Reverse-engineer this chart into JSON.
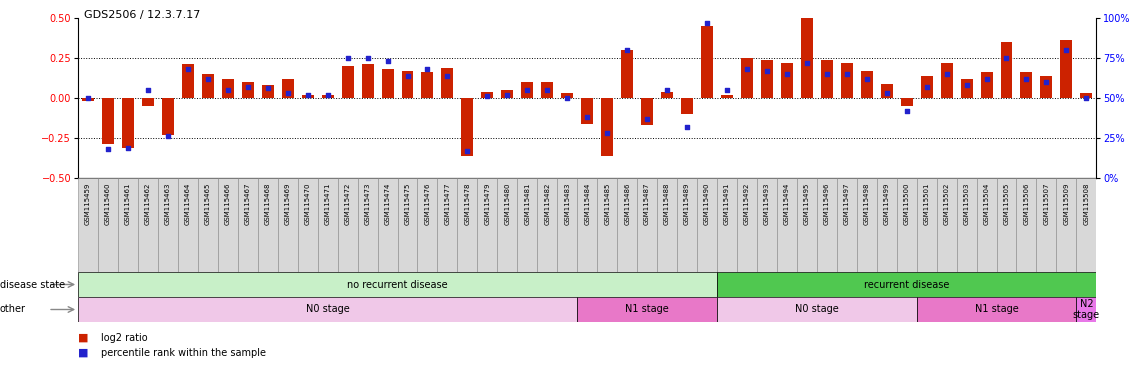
{
  "title": "GDS2506 / 12.3.7.17",
  "samples": [
    "GSM115459",
    "GSM115460",
    "GSM115461",
    "GSM115462",
    "GSM115463",
    "GSM115464",
    "GSM115465",
    "GSM115466",
    "GSM115467",
    "GSM115468",
    "GSM115469",
    "GSM115470",
    "GSM115471",
    "GSM115472",
    "GSM115473",
    "GSM115474",
    "GSM115475",
    "GSM115476",
    "GSM115477",
    "GSM115478",
    "GSM115479",
    "GSM115480",
    "GSM115481",
    "GSM115482",
    "GSM115483",
    "GSM115484",
    "GSM115485",
    "GSM115486",
    "GSM115487",
    "GSM115488",
    "GSM115489",
    "GSM115490",
    "GSM115491",
    "GSM115492",
    "GSM115493",
    "GSM115494",
    "GSM115495",
    "GSM115496",
    "GSM115497",
    "GSM115498",
    "GSM115499",
    "GSM115500",
    "GSM115501",
    "GSM115502",
    "GSM115503",
    "GSM115504",
    "GSM115505",
    "GSM115506",
    "GSM115507",
    "GSM115509",
    "GSM115508"
  ],
  "log2_ratio": [
    -0.02,
    -0.29,
    -0.31,
    -0.05,
    -0.23,
    0.21,
    0.15,
    0.12,
    0.1,
    0.08,
    0.12,
    0.02,
    0.02,
    0.2,
    0.21,
    0.18,
    0.17,
    0.16,
    0.19,
    -0.36,
    0.04,
    0.05,
    0.1,
    0.1,
    0.03,
    -0.16,
    -0.36,
    0.3,
    -0.17,
    0.04,
    -0.1,
    0.45,
    0.02,
    0.25,
    0.24,
    0.22,
    0.5,
    0.24,
    0.22,
    0.17,
    0.09,
    -0.05,
    0.14,
    0.22,
    0.12,
    0.16,
    0.35,
    0.16,
    0.14,
    0.36,
    0.03
  ],
  "percentile": [
    50,
    18,
    19,
    55,
    26,
    68,
    62,
    55,
    57,
    56,
    53,
    52,
    52,
    75,
    75,
    73,
    64,
    68,
    64,
    17,
    51,
    52,
    55,
    55,
    50,
    38,
    28,
    80,
    37,
    55,
    32,
    97,
    55,
    68,
    67,
    65,
    72,
    65,
    65,
    62,
    53,
    42,
    57,
    65,
    58,
    62,
    75,
    62,
    60,
    80,
    50
  ],
  "disease_state_regions": [
    {
      "label": "no recurrent disease",
      "start": 0,
      "end": 32,
      "color": "#c8f0c8"
    },
    {
      "label": "recurrent disease",
      "start": 32,
      "end": 51,
      "color": "#50c850"
    }
  ],
  "other_regions": [
    {
      "label": "N0 stage",
      "start": 0,
      "end": 25,
      "color": "#f0c8e8"
    },
    {
      "label": "N1 stage",
      "start": 25,
      "end": 32,
      "color": "#e878c8"
    },
    {
      "label": "N0 stage",
      "start": 32,
      "end": 42,
      "color": "#f0c8e8"
    },
    {
      "label": "N1 stage",
      "start": 42,
      "end": 50,
      "color": "#e878c8"
    },
    {
      "label": "N2\nstage",
      "start": 50,
      "end": 51,
      "color": "#e878e8"
    }
  ],
  "ylim_left": [
    -0.5,
    0.5
  ],
  "ylim_right": [
    0,
    100
  ],
  "yticks_left": [
    -0.5,
    -0.25,
    0.0,
    0.25,
    0.5
  ],
  "yticks_right": [
    0,
    25,
    50,
    75,
    100
  ],
  "bar_color": "#CC2200",
  "dot_color": "#2222CC",
  "grid_lines": [
    -0.25,
    0.0,
    0.25
  ],
  "xlabel_box_color": "#d8d8d8",
  "xlabel_box_edge": "#888888",
  "left_label_color": "#666666",
  "arrow_color": "#888888"
}
